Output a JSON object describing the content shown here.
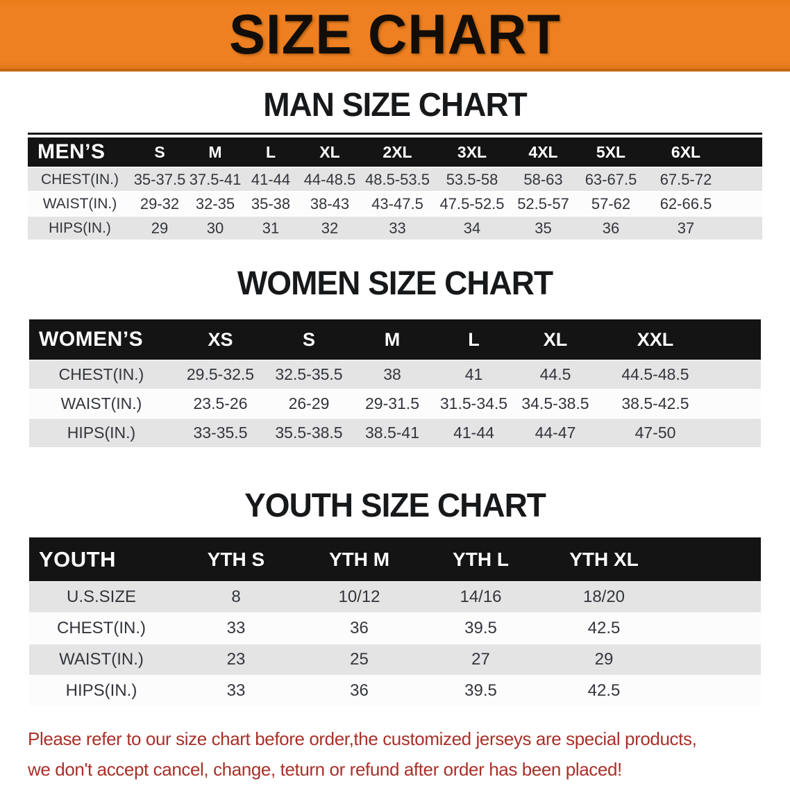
{
  "banner": {
    "title": "SIZE CHART"
  },
  "sections": [
    {
      "heading": "MAN SIZE CHART",
      "group_label": "MEN’S",
      "columns": [
        "S",
        "M",
        "L",
        "XL",
        "2XL",
        "3XL",
        "4XL",
        "5XL",
        "6XL"
      ],
      "rows": [
        {
          "label": "CHEST(IN.)",
          "values": [
            "35-37.5",
            "37.5-41",
            "41-44",
            "44-48.5",
            "48.5-53.5",
            "53.5-58",
            "58-63",
            "63-67.5",
            "67.5-72"
          ]
        },
        {
          "label": "WAIST(IN.)",
          "values": [
            "29-32",
            "32-35",
            "35-38",
            "38-43",
            "43-47.5",
            "47.5-52.5",
            "52.5-57",
            "57-62",
            "62-66.5"
          ]
        },
        {
          "label": "HIPS(IN.)",
          "values": [
            "29",
            "30",
            "31",
            "32",
            "33",
            "34",
            "35",
            "36",
            "37"
          ]
        }
      ]
    },
    {
      "heading": "WOMEN SIZE CHART",
      "group_label": "WOMEN’S",
      "columns": [
        "XS",
        "S",
        "M",
        "L",
        "XL",
        "XXL"
      ],
      "rows": [
        {
          "label": "CHEST(IN.)",
          "values": [
            "29.5-32.5",
            "32.5-35.5",
            "38",
            "41",
            "44.5",
            "44.5-48.5"
          ]
        },
        {
          "label": "WAIST(IN.)",
          "values": [
            "23.5-26",
            "26-29",
            "29-31.5",
            "31.5-34.5",
            "34.5-38.5",
            "38.5-42.5"
          ]
        },
        {
          "label": "HIPS(IN.)",
          "values": [
            "33-35.5",
            "35.5-38.5",
            "38.5-41",
            "41-44",
            "44-47",
            "47-50"
          ]
        }
      ]
    },
    {
      "heading": "YOUTH SIZE CHART",
      "group_label": "YOUTH",
      "columns": [
        "YTH S",
        "YTH M",
        "YTH L",
        "YTH XL"
      ],
      "rows": [
        {
          "label": "U.S.SIZE",
          "values": [
            "8",
            "10/12",
            "14/16",
            "18/20"
          ]
        },
        {
          "label": "CHEST(IN.)",
          "values": [
            "33",
            "36",
            "39.5",
            "42.5"
          ]
        },
        {
          "label": "WAIST(IN.)",
          "values": [
            "23",
            "25",
            "27",
            "29"
          ]
        },
        {
          "label": "HIPS(IN.)",
          "values": [
            "33",
            "36",
            "39.5",
            "42.5"
          ]
        }
      ]
    }
  ],
  "footer": {
    "line1": "Please refer to our size chart before order,the customized jerseys are special products,",
    "line2": "we don't accept cancel, change, teturn or refund after order has been placed!"
  },
  "colors": {
    "banner_orange": "#EE8021",
    "banner_edge": "#C4690F",
    "header_black": "#141414",
    "row_gray": "#E4E4E5",
    "row_white": "#FCFCFD",
    "note_red": "#A93029"
  }
}
